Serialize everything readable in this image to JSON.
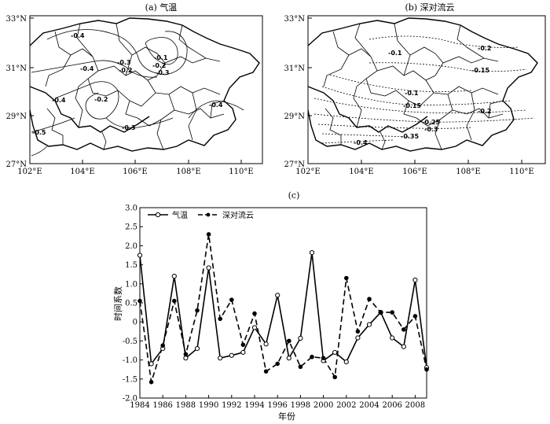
{
  "chart_data": [
    {
      "type": "map",
      "title": "(a) 气温",
      "xticks": [
        "102°E",
        "104°E",
        "106°E",
        "108°E",
        "110°E"
      ],
      "yticks": [
        "27°N",
        "29°N",
        "31°N",
        "33°N"
      ],
      "contour_labels": [
        "-0.4",
        "-0.3",
        "-0.2",
        "-0.1",
        "-0.2",
        "-0.3",
        "-0.4",
        "-0.2",
        "-0.4",
        "-0.3",
        "-0.4",
        "-0.5"
      ]
    },
    {
      "type": "map",
      "title": "(b) 深对流云",
      "xticks": [
        "102°E",
        "104°E",
        "106°E",
        "108°E",
        "110°E"
      ],
      "yticks": [
        "27°N",
        "29°N",
        "31°N",
        "33°N"
      ],
      "contour_labels": [
        "-0.1",
        "-0.2",
        "-0.15",
        "-0.1",
        "-0.15",
        "-0.2",
        "-0.25",
        "-0.3",
        "-0.35",
        "-0.4"
      ]
    },
    {
      "type": "line",
      "title": "(c)",
      "xlabel": "年份",
      "ylabel": "时间系数",
      "xlim": [
        1984,
        2009
      ],
      "ylim": [
        -2.0,
        3.0
      ],
      "xticks": [
        "1984",
        "1986",
        "1988",
        "1990",
        "1992",
        "1994",
        "1996",
        "1998",
        "2000",
        "2002",
        "2004",
        "2006",
        "2008"
      ],
      "yticks": [
        "-2.0",
        "-1.5",
        "-1.0",
        "-0.5",
        "0",
        "0.5",
        "1.0",
        "1.5",
        "2.0",
        "2.5",
        "3.0"
      ],
      "x": [
        1984,
        1985,
        1986,
        1987,
        1988,
        1989,
        1990,
        1991,
        1992,
        1993,
        1994,
        1995,
        1996,
        1997,
        1998,
        1999,
        2000,
        2001,
        2002,
        2003,
        2004,
        2005,
        2006,
        2007,
        2008,
        2009
      ],
      "series": [
        {
          "name": "气温",
          "style": "solid-open-circle",
          "values": [
            1.75,
            -1.1,
            -0.7,
            1.2,
            -0.95,
            -0.7,
            1.42,
            -0.95,
            -0.88,
            -0.8,
            -0.15,
            -0.58,
            0.7,
            -0.95,
            -0.43,
            1.82,
            -1.02,
            -0.8,
            -1.05,
            -0.42,
            -0.07,
            0.25,
            -0.42,
            -0.65,
            1.1,
            -1.2
          ]
        },
        {
          "name": "深对流云",
          "style": "dashed-filled-circle",
          "values": [
            0.55,
            -1.58,
            -0.62,
            0.55,
            -0.85,
            0.3,
            2.3,
            0.08,
            0.58,
            -0.6,
            0.22,
            -1.3,
            -1.1,
            -0.5,
            -1.18,
            -0.92,
            -0.95,
            -1.45,
            1.15,
            -0.25,
            0.6,
            0.25,
            0.25,
            -0.2,
            0.15,
            -1.25
          ]
        }
      ]
    }
  ]
}
